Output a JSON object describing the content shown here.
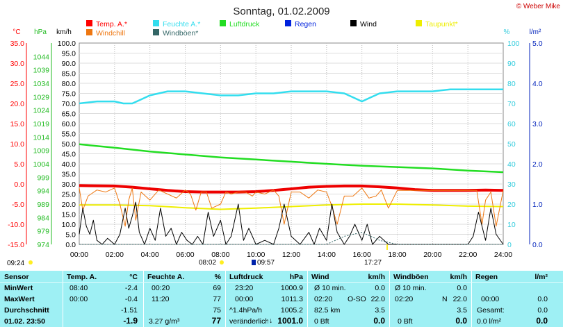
{
  "header": {
    "title": "Sonntag, 01.02.2009",
    "copyright": "© Weber Mike"
  },
  "legend": [
    {
      "label": "Temp. A.*",
      "color": "#ff0000"
    },
    {
      "label": "Feuchte A.*",
      "color": "#33ddee"
    },
    {
      "label": "Luftdruck",
      "color": "#22dd22"
    },
    {
      "label": "Regen",
      "color": "#0022dd"
    },
    {
      "label": "Wind",
      "color": "#000000"
    },
    {
      "label": "Taupunkt*",
      "color": "#eeee00"
    },
    {
      "label": "Windchill",
      "color": "#ee7711"
    },
    {
      "label": "Windböen*",
      "color": "#336666"
    }
  ],
  "axes": {
    "temp_unit": "°C",
    "hpa_unit": "hPa",
    "kmh_unit": "km/h",
    "pct_unit": "%",
    "rain_unit": "l/m²",
    "temp_ticks": [
      "35.0",
      "30.0",
      "25.0",
      "20.0",
      "15.0",
      "10.0",
      "5.0",
      "0.0",
      "-5.0",
      "-10.0",
      "-15.0"
    ],
    "hpa_ticks": [
      "1044",
      "1039",
      "1034",
      "1029",
      "1024",
      "1019",
      "1014",
      "1009",
      "1004",
      "999",
      "994",
      "989",
      "984",
      "979",
      "974"
    ],
    "kmh_ticks": [
      "100.0",
      "95.0",
      "90.0",
      "85.0",
      "80.0",
      "75.0",
      "70.0",
      "65.0",
      "60.0",
      "55.0",
      "50.0",
      "45.0",
      "40.0",
      "35.0",
      "30.0",
      "25.0",
      "20.0",
      "15.0",
      "10.0",
      "5.0",
      "0.0"
    ],
    "pct_ticks": [
      "100",
      "90",
      "80",
      "70",
      "60",
      "50",
      "40",
      "30",
      "20",
      "10",
      "0"
    ],
    "rain_ticks": [
      "5.0",
      "4.0",
      "3.0",
      "2.0",
      "1.0",
      "0.0"
    ],
    "time_ticks": [
      "00:00",
      "02:00",
      "04:00",
      "06:00",
      "08:00",
      "10:00",
      "12:00",
      "14:00",
      "16:00",
      "18:00",
      "20:00",
      "22:00",
      "24:00"
    ]
  },
  "markers": {
    "sunrise_left": "09:24",
    "t1": "08:02",
    "t2": "09:57",
    "t3": "17:27"
  },
  "chart_data": {
    "type": "line",
    "title": "Sonntag, 01.02.2009",
    "x_range_hours": [
      0,
      24
    ],
    "temp_range": [
      -15,
      35
    ],
    "hpa_range": [
      974,
      1049
    ],
    "kmh_range": [
      0,
      100
    ],
    "pct_range": [
      0,
      100
    ],
    "series": [
      {
        "name": "Temp. A.*",
        "axis": "temp",
        "x": [
          0,
          2,
          3,
          4,
          5,
          6,
          7,
          8,
          9,
          10,
          11,
          12,
          13,
          14,
          15,
          16,
          17,
          18,
          19,
          20,
          21,
          22,
          23,
          24
        ],
        "values": [
          -0.4,
          -0.5,
          -0.8,
          -1.2,
          -1.6,
          -1.9,
          -2.0,
          -2.0,
          -2.0,
          -1.9,
          -1.6,
          -1.2,
          -0.8,
          -0.6,
          -0.5,
          -0.5,
          -0.7,
          -1.0,
          -1.4,
          -1.6,
          -1.6,
          -1.6,
          -1.5,
          -1.6
        ]
      },
      {
        "name": "Feuchte A.*",
        "axis": "pct",
        "x": [
          0,
          1,
          2,
          2.5,
          3,
          3.5,
          4,
          5,
          6,
          7,
          8,
          9,
          10,
          11,
          12,
          13,
          14,
          15,
          15.5,
          16,
          16.5,
          17,
          18,
          19,
          20,
          21,
          22,
          23,
          24
        ],
        "values": [
          70,
          71,
          71,
          70,
          70,
          72,
          74,
          76,
          76,
          75,
          74,
          74,
          75,
          75,
          76,
          76,
          76,
          75,
          73,
          71,
          73,
          75,
          76,
          76,
          76,
          77,
          77,
          77,
          77
        ]
      },
      {
        "name": "Luftdruck",
        "axis": "hpa",
        "x": [
          0,
          2,
          4,
          6,
          8,
          10,
          12,
          14,
          16,
          18,
          20,
          22,
          24
        ],
        "values": [
          1011.3,
          1010.0,
          1008.6,
          1007.5,
          1006.4,
          1005.6,
          1004.8,
          1004.0,
          1003.3,
          1002.8,
          1002.3,
          1001.5,
          1000.9
        ]
      },
      {
        "name": "Taupunkt*",
        "axis": "temp",
        "x": [
          0,
          2,
          4,
          6,
          8,
          10,
          12,
          14,
          16,
          18,
          20,
          22,
          24
        ],
        "values": [
          -5.2,
          -5.2,
          -5.4,
          -5.9,
          -6.3,
          -6.0,
          -5.6,
          -5.2,
          -5.0,
          -5.0,
          -5.2,
          -5.5,
          -5.6
        ]
      },
      {
        "name": "Windchill",
        "axis": "temp",
        "x": [
          0,
          0.2,
          0.5,
          1,
          1.5,
          2,
          2.3,
          2.6,
          2.8,
          3.0,
          3.2,
          3.5,
          4,
          4.5,
          5,
          5.5,
          6,
          6.3,
          6.6,
          6.9,
          7.2,
          7.5,
          8,
          8.3,
          8.6,
          9,
          9.4,
          9.8,
          10,
          10.5,
          11,
          11.3,
          11.6,
          12,
          12.5,
          13,
          13.5,
          14,
          14.3,
          14.6,
          15,
          15.5,
          16,
          16.4,
          16.8,
          17.1,
          17.5,
          18,
          19,
          20,
          21,
          22,
          22.5,
          22.8,
          23,
          23.3,
          23.6,
          24
        ],
        "values": [
          -1.0,
          -6.5,
          -3.0,
          -1.5,
          -2.0,
          -1.0,
          -5.0,
          -10.5,
          -4.0,
          -1.0,
          -9.0,
          -2.0,
          -4.0,
          -1.5,
          -2.5,
          -3.5,
          -1.5,
          -2.5,
          -6.5,
          -2.0,
          -2.0,
          -6.0,
          -5.0,
          -2.0,
          -2.5,
          -2.0,
          -2.0,
          -3.0,
          -2.0,
          -2.5,
          -1.5,
          -3.0,
          -10.0,
          -2.0,
          -2.0,
          -3.5,
          -1.5,
          -2.0,
          -5.5,
          -10.0,
          -3.0,
          -3.0,
          -1.0,
          -3.5,
          -3.0,
          -1.5,
          -6.0,
          -1.6,
          -1.6,
          -1.6,
          -1.6,
          -1.6,
          -1.6,
          -10.0,
          -4.0,
          -2.0,
          -10.5,
          -1.6
        ]
      },
      {
        "name": "Wind",
        "axis": "kmh",
        "x": [
          0,
          0.2,
          0.4,
          0.6,
          0.8,
          1,
          1.3,
          1.6,
          2,
          2.3,
          2.6,
          2.8,
          3,
          3.2,
          3.4,
          3.7,
          4,
          4.3,
          4.6,
          4.9,
          5.2,
          5.5,
          5.8,
          6.1,
          6.4,
          6.7,
          7,
          7.3,
          7.6,
          8,
          8.3,
          8.6,
          9,
          9.3,
          9.6,
          10,
          10.5,
          11,
          11.3,
          11.6,
          12,
          12.5,
          13,
          13.3,
          13.6,
          14,
          14.3,
          14.6,
          15,
          15.3,
          15.6,
          16,
          16.3,
          16.6,
          17,
          17.5,
          18,
          19,
          20,
          21,
          22,
          22.3,
          22.6,
          23,
          23.3,
          23.6,
          24
        ],
        "values": [
          5,
          18,
          9,
          5,
          12,
          2,
          0,
          3,
          0,
          5,
          18,
          8,
          14,
          21,
          6,
          0,
          8,
          2,
          18,
          4,
          8,
          0,
          6,
          2,
          0,
          4,
          0,
          16,
          4,
          12,
          0,
          4,
          20,
          2,
          8,
          0,
          2,
          0,
          8,
          20,
          4,
          0,
          6,
          0,
          8,
          2,
          20,
          6,
          0,
          4,
          10,
          2,
          10,
          0,
          4,
          0,
          0,
          0,
          0,
          0,
          0,
          4,
          16,
          2,
          18,
          5,
          0
        ]
      },
      {
        "name": "Windböen*",
        "axis": "kmh",
        "x": [
          0,
          2,
          4,
          6,
          8,
          10,
          12,
          14,
          15,
          16,
          17,
          18,
          20,
          22,
          24
        ],
        "values": [
          0,
          0,
          0,
          0,
          0,
          0,
          0,
          0,
          4,
          6,
          2,
          0,
          0,
          0,
          0
        ]
      }
    ]
  },
  "table": {
    "headers": {
      "sensor": "Sensor",
      "temp": "Temp. A.",
      "temp_unit": "°C",
      "feuchte": "Feuchte A.",
      "feuchte_unit": "%",
      "luftdruck": "Luftdruck",
      "luftdruck_unit": "hPa",
      "wind": "Wind",
      "wind_unit": "km/h",
      "windboeen": "Windböen",
      "windboeen_unit": "km/h",
      "regen": "Regen",
      "regen_unit": "l/m²"
    },
    "rows": {
      "min": {
        "label": "MinWert",
        "temp_time": "08:40",
        "temp_val": "-2.4",
        "feuchte_time": "00:20",
        "feuchte_val": "69",
        "druck_time": "23:20",
        "druck_val": "1000.9",
        "wind_a": "Ø 10 min.",
        "wind_val": "0.0",
        "boeen_a": "Ø 10 min.",
        "boeen_val": "0.0"
      },
      "max": {
        "label": "MaxWert",
        "temp_time": "00:00",
        "temp_val": "-0.4",
        "feuchte_time": "11:20",
        "feuchte_val": "77",
        "druck_time": "00:00",
        "druck_val": "1011.3",
        "wind_a": "02:20",
        "wind_dir": "O-SO",
        "wind_val": "22.0",
        "boeen_a": "02:20",
        "boeen_dir": "N",
        "boeen_val": "22.0",
        "regen_a": "00:00",
        "regen_val": "0.0"
      },
      "avg": {
        "label": "Durchschnitt",
        "temp_val": "-1.51",
        "feuchte_val": "75",
        "druck_a": "^1.4hPa/h",
        "druck_val": "1005.2",
        "wind_a": "82.5 km",
        "wind_val": "3.5",
        "boeen_val": "3.5",
        "regen_a": "Gesamt:",
        "regen_val": "0.0"
      },
      "cur": {
        "label": "01.02. 23:50",
        "temp_val": "-1.9",
        "feuchte_a": "3.27 g/m³",
        "feuchte_val": "77",
        "druck_a": "veränderlich",
        "druck_val": "1001.0",
        "wind_a": "0 Bft",
        "wind_val": "0.0",
        "boeen_a": "0 Bft",
        "boeen_val": "0.0",
        "regen_a": "0.0 l/m²",
        "regen_val": "0.0"
      }
    }
  }
}
